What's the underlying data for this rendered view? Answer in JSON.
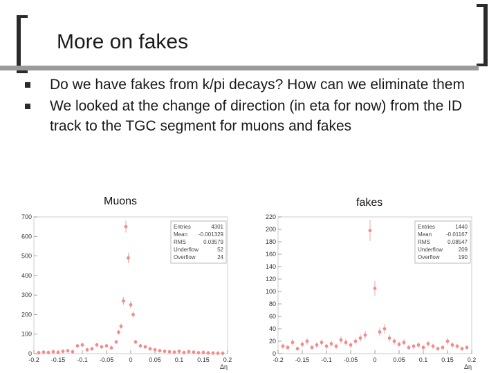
{
  "slide": {
    "title": "More on fakes",
    "bullets": [
      "Do we have fakes from k/pi decays? How can we eliminate them",
      "We looked at the change of direction (in eta for now) from the ID track to the TGC segment for muons and fakes"
    ]
  },
  "colors": {
    "marker": "#f08c8c",
    "bullet": "#2b2b2b",
    "rule": "#9a9a9a"
  },
  "chart_data": [
    {
      "type": "scatter",
      "title": "Muons",
      "xlabel": "Δη",
      "ylabel": "",
      "xlim": [
        -0.2,
        0.2
      ],
      "ylim": [
        0,
        700
      ],
      "xticks": [
        -0.2,
        -0.15,
        -0.1,
        -0.05,
        0,
        0.05,
        0.1,
        0.15,
        0.2
      ],
      "xtick_labels": [
        "-0.2",
        "-0.15",
        "-0.1",
        "-0.05",
        "0",
        "0.05",
        "0.1",
        "0.15",
        "0.2"
      ],
      "yticks": [
        0,
        100,
        200,
        300,
        400,
        500,
        600,
        700
      ],
      "stats": [
        {
          "label": "Entries",
          "value": "4301"
        },
        {
          "label": "Mean",
          "value": "-0.001329"
        },
        {
          "label": "RMS",
          "value": "0.03579"
        },
        {
          "label": "Underflow",
          "value": "52"
        },
        {
          "label": "Overflow",
          "value": "24"
        }
      ],
      "x": [
        -0.19,
        -0.18,
        -0.17,
        -0.16,
        -0.15,
        -0.14,
        -0.13,
        -0.12,
        -0.11,
        -0.1,
        -0.09,
        -0.08,
        -0.07,
        -0.06,
        -0.05,
        -0.04,
        -0.03,
        -0.02,
        -0.01,
        0.0,
        0.01,
        0.02,
        0.03,
        0.04,
        0.05,
        0.06,
        0.07,
        0.08,
        0.09,
        0.1,
        0.11,
        0.12,
        0.13,
        0.14,
        0.15,
        0.16,
        0.17,
        0.18,
        0.19,
        -0.005,
        -0.015,
        0.005,
        -0.025
      ],
      "y": [
        5,
        8,
        6,
        10,
        7,
        12,
        15,
        10,
        40,
        45,
        20,
        25,
        45,
        35,
        40,
        30,
        60,
        140,
        650,
        250,
        60,
        40,
        35,
        25,
        20,
        15,
        12,
        10,
        8,
        12,
        6,
        10,
        8,
        5,
        6,
        4,
        3,
        2,
        2,
        490,
        270,
        200,
        110
      ]
    },
    {
      "type": "scatter",
      "title": "fakes",
      "xlabel": "Δη",
      "ylabel": "",
      "xlim": [
        -0.2,
        0.2
      ],
      "ylim": [
        0,
        220
      ],
      "xticks": [
        -0.2,
        -0.15,
        -0.1,
        -0.05,
        0,
        0.05,
        0.1,
        0.15,
        0.2
      ],
      "xtick_labels": [
        "-0.2",
        "-0.15",
        "-0.1",
        "-0.05",
        "0",
        "0.05",
        "0.1",
        "0.15",
        "0.2"
      ],
      "yticks": [
        0,
        20,
        40,
        60,
        80,
        100,
        120,
        140,
        160,
        180,
        200,
        220
      ],
      "stats": [
        {
          "label": "Entries",
          "value": "1440"
        },
        {
          "label": "Mean",
          "value": "-0.01167"
        },
        {
          "label": "RMS",
          "value": "0.08547"
        },
        {
          "label": "Underflow",
          "value": "209"
        },
        {
          "label": "Overflow",
          "value": "190"
        }
      ],
      "x": [
        -0.19,
        -0.18,
        -0.17,
        -0.16,
        -0.15,
        -0.14,
        -0.13,
        -0.12,
        -0.11,
        -0.1,
        -0.09,
        -0.08,
        -0.07,
        -0.06,
        -0.05,
        -0.04,
        -0.03,
        -0.02,
        -0.01,
        0.0,
        0.01,
        0.02,
        0.03,
        0.04,
        0.05,
        0.06,
        0.07,
        0.08,
        0.09,
        0.1,
        0.11,
        0.12,
        0.13,
        0.14,
        0.15,
        0.16,
        0.17,
        0.18,
        0.19
      ],
      "y": [
        12,
        10,
        18,
        8,
        15,
        20,
        10,
        14,
        18,
        12,
        16,
        12,
        22,
        18,
        14,
        20,
        25,
        30,
        198,
        105,
        35,
        40,
        25,
        20,
        15,
        18,
        10,
        12,
        14,
        10,
        16,
        12,
        8,
        10,
        20,
        14,
        12,
        8,
        10
      ]
    }
  ]
}
